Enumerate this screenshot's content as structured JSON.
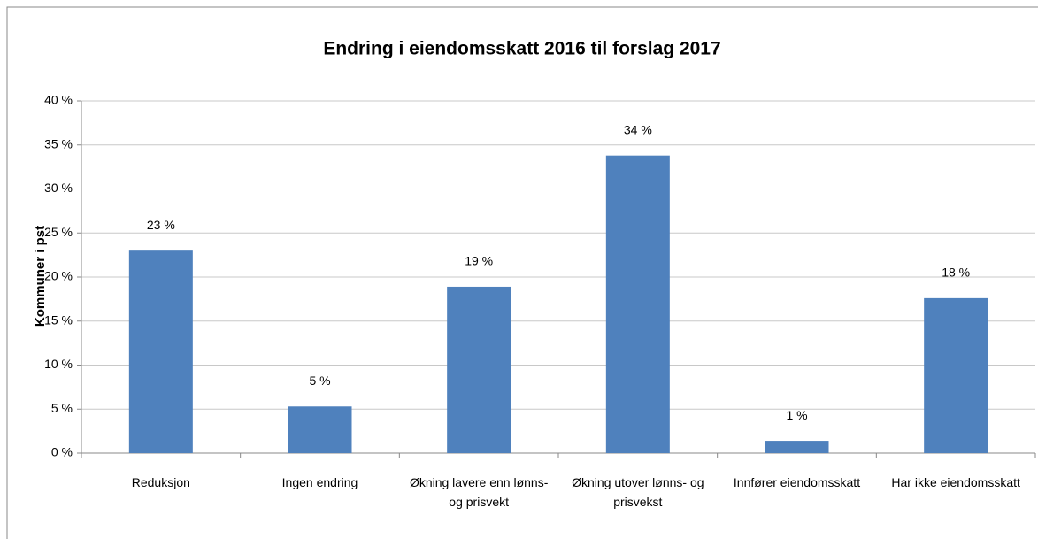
{
  "chart_data": {
    "type": "bar",
    "title": "Endring i eiendomsskatt 2016 til forslag 2017",
    "y_label": "Kommuner i pst",
    "categories": [
      "Reduksjon",
      "Ingen endring",
      "Økning lavere enn lønns- og prisvekt",
      "Økning utover lønns- og prisvekst",
      "Innfører eiendomsskatt",
      "Har ikke eiendomsskatt"
    ],
    "values": [
      23,
      5.3,
      18.9,
      33.8,
      1.4,
      17.6
    ],
    "value_labels": [
      "23 %",
      "5 %",
      "19 %",
      "34 %",
      "1 %",
      "18 %"
    ],
    "color": "#4f81bd",
    "ylim": [
      0,
      40
    ],
    "yticks": [
      {
        "value": 0,
        "label": "0 %"
      },
      {
        "value": 5,
        "label": "5 %"
      },
      {
        "value": 10,
        "label": "10 %"
      },
      {
        "value": 15,
        "label": "15 %"
      },
      {
        "value": 20,
        "label": "20 %"
      },
      {
        "value": 25,
        "label": "25 %"
      },
      {
        "value": 30,
        "label": "30 %"
      },
      {
        "value": 35,
        "label": "35 %"
      },
      {
        "value": 40,
        "label": "40 %"
      }
    ],
    "grid": true
  }
}
